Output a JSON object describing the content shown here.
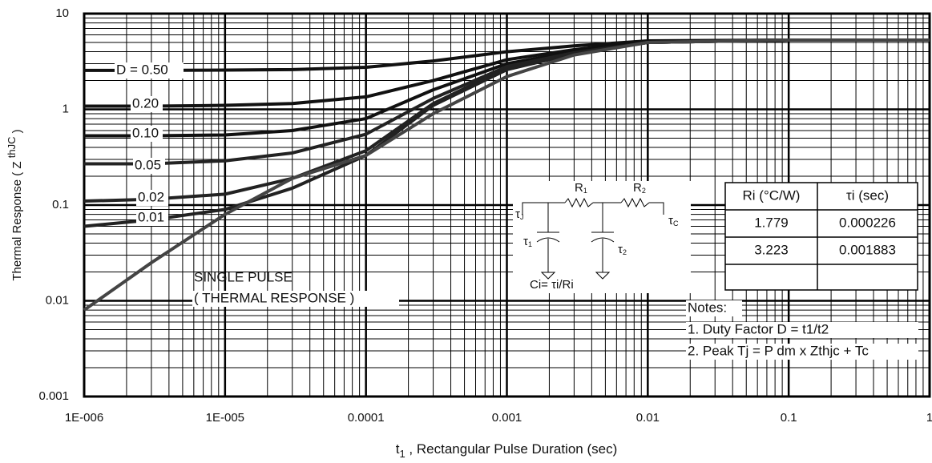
{
  "chart_data": {
    "type": "line",
    "y_label_parts": [
      "Thermal Response ( Z ",
      "thJC",
      " )"
    ],
    "x_label_parts": [
      "t",
      "1",
      " , Rectangular Pulse Duration (sec)"
    ],
    "log_x": true,
    "log_y": true,
    "grid": true,
    "minor_grid": true,
    "xlim": [
      1e-06,
      1
    ],
    "ylim": [
      0.001,
      10
    ],
    "xticks": [
      {
        "value": 1e-06,
        "label": "1E-006"
      },
      {
        "value": 1e-05,
        "label": "1E-005"
      },
      0.0001,
      0.001,
      0.01,
      0.1,
      1
    ],
    "yticks": [
      0.001,
      0.01,
      0.1,
      1,
      10
    ],
    "x": [
      1e-06,
      3e-06,
      1e-05,
      3e-05,
      0.0001,
      0.0003,
      0.001,
      0.003,
      0.01,
      0.1,
      1
    ],
    "series": [
      {
        "name": "D = 0.50",
        "color": "#111111",
        "values": [
          2.55,
          2.55,
          2.57,
          2.6,
          2.75,
          3.2,
          4.0,
          4.6,
          5.2,
          5.3,
          5.3
        ]
      },
      {
        "name": "0.20",
        "color": "#111111",
        "values": [
          1.08,
          1.08,
          1.1,
          1.15,
          1.35,
          2.0,
          3.3,
          4.2,
          5.1,
          5.3,
          5.3
        ]
      },
      {
        "name": "0.10",
        "color": "#111111",
        "values": [
          0.53,
          0.53,
          0.54,
          0.6,
          0.8,
          1.6,
          3.0,
          4.0,
          5.0,
          5.3,
          5.3
        ]
      },
      {
        "name": "0.05",
        "color": "#222222",
        "values": [
          0.27,
          0.27,
          0.29,
          0.35,
          0.55,
          1.3,
          2.8,
          3.9,
          5.0,
          5.3,
          5.3
        ]
      },
      {
        "name": "0.02",
        "color": "#222222",
        "values": [
          0.11,
          0.115,
          0.13,
          0.19,
          0.37,
          1.15,
          2.7,
          3.8,
          5.0,
          5.3,
          5.3
        ]
      },
      {
        "name": "0.01",
        "color": "#222222",
        "values": [
          0.06,
          0.07,
          0.09,
          0.15,
          0.33,
          1.1,
          2.6,
          3.8,
          5.0,
          5.3,
          5.3
        ]
      },
      {
        "name": "SINGLE PULSE",
        "color": "#444444",
        "values": [
          0.008,
          0.025,
          0.08,
          0.19,
          0.33,
          0.9,
          2.2,
          3.7,
          5.0,
          5.3,
          5.3
        ]
      }
    ],
    "annotation": "( THERMAL RESPONSE )",
    "circuit": {
      "tau_j": [
        "τ",
        "J"
      ],
      "tau_c": [
        "τ",
        "C"
      ],
      "r1": [
        "R",
        "1"
      ],
      "r2": [
        "R",
        "2"
      ],
      "tau1": [
        "τ",
        "1"
      ],
      "tau2": [
        "τ",
        "2"
      ],
      "ci": "Ci= τi/Ri"
    },
    "table": {
      "header": [
        "Ri (°C/W)",
        "τi (sec)"
      ],
      "rows": [
        [
          "1.779",
          "0.000226"
        ],
        [
          "3.223",
          "0.001883"
        ]
      ]
    },
    "notes": [
      "Notes:",
      "1. Duty Factor D = t1/t2",
      "2. Peak Tj = P dm x Zthjc + Tc"
    ]
  }
}
